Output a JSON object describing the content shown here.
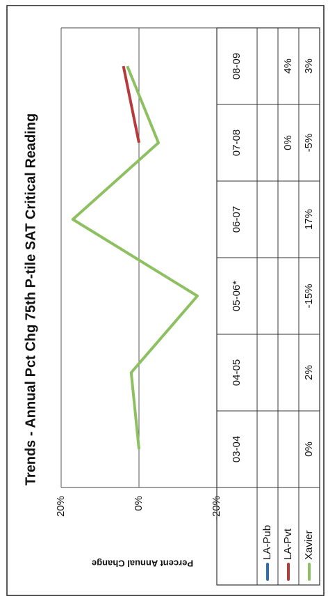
{
  "chart_data": {
    "type": "line",
    "title": "Trends - Annual Pct Chg 75th P-tile SAT Critical Reading",
    "y_label": "Percent Annual Change",
    "categories": [
      "03-04",
      "04-05",
      "05-06*",
      "06-07",
      "07-08",
      "08-09"
    ],
    "series": [
      {
        "name": "LA-Pub",
        "color": "#2e6db4",
        "values": [
          null,
          null,
          null,
          null,
          null,
          null
        ]
      },
      {
        "name": "LA-Pvt",
        "color": "#b83a3a",
        "values": [
          null,
          null,
          null,
          null,
          0,
          4
        ],
        "value_labels": [
          null,
          null,
          null,
          null,
          "0%",
          "4%"
        ]
      },
      {
        "name": "Xavier",
        "color": "#8dc060",
        "values": [
          0,
          2,
          -15,
          17,
          -5,
          3
        ],
        "value_labels": [
          "0%",
          "2%",
          "-15%",
          "17%",
          "-5%",
          "3%"
        ]
      }
    ],
    "ylim": [
      -20,
      20
    ],
    "yticks": [
      {
        "value": 20,
        "label": "20%"
      },
      {
        "value": 0,
        "label": "0%"
      },
      {
        "value": -20,
        "label": "-20%"
      }
    ],
    "grid": true
  }
}
